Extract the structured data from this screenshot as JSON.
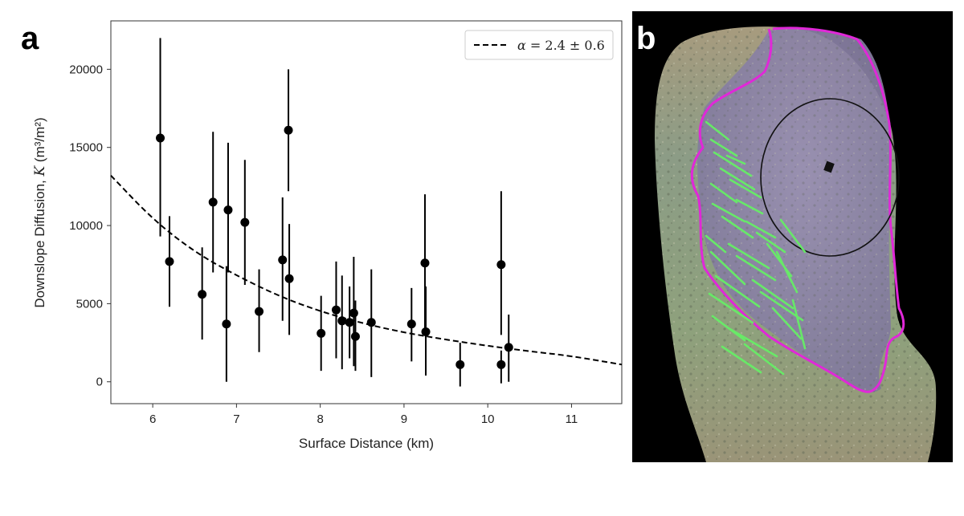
{
  "panels": {
    "a_label": "a",
    "b_label": "b"
  },
  "chart_data": {
    "type": "scatter",
    "title": "",
    "xlabel": "Surface Distance (km)",
    "ylabel": "Downslope Diffusion, K (m³/m²)",
    "ylabel_parts": {
      "prefix": "Downslope Diffusion, ",
      "var": "K",
      "unit": " (m³/m²)"
    },
    "xlim": [
      5.5,
      11.6
    ],
    "ylim": [
      -1400,
      23100
    ],
    "xticks": [
      6,
      7,
      8,
      9,
      10,
      11
    ],
    "yticks": [
      0,
      5000,
      10000,
      15000,
      20000
    ],
    "grid": false,
    "legend_position": "top-right",
    "series": [
      {
        "kind": "errorbar",
        "color": "#000000",
        "points": [
          {
            "x": 6.09,
            "y": 15600,
            "lo": 9300,
            "hi": 22000
          },
          {
            "x": 6.2,
            "y": 7700,
            "lo": 4800,
            "hi": 10600
          },
          {
            "x": 6.59,
            "y": 5600,
            "lo": 2700,
            "hi": 8600
          },
          {
            "x": 6.72,
            "y": 11500,
            "lo": 7000,
            "hi": 16000
          },
          {
            "x": 6.88,
            "y": 3700,
            "lo": 0,
            "hi": 7400
          },
          {
            "x": 6.9,
            "y": 11000,
            "lo": 7000,
            "hi": 15300
          },
          {
            "x": 7.1,
            "y": 10200,
            "lo": 6200,
            "hi": 14200
          },
          {
            "x": 7.27,
            "y": 4500,
            "lo": 1900,
            "hi": 7200
          },
          {
            "x": 7.55,
            "y": 7800,
            "lo": 3900,
            "hi": 11800
          },
          {
            "x": 7.62,
            "y": 16100,
            "lo": 12200,
            "hi": 20000
          },
          {
            "x": 7.63,
            "y": 6600,
            "lo": 3000,
            "hi": 10100
          },
          {
            "x": 8.01,
            "y": 3100,
            "lo": 700,
            "hi": 5500
          },
          {
            "x": 8.19,
            "y": 4600,
            "lo": 1500,
            "hi": 7700
          },
          {
            "x": 8.26,
            "y": 3900,
            "lo": 800,
            "hi": 6800
          },
          {
            "x": 8.35,
            "y": 3800,
            "lo": 1500,
            "hi": 6100
          },
          {
            "x": 8.4,
            "y": 4400,
            "lo": 1000,
            "hi": 8000
          },
          {
            "x": 8.42,
            "y": 2900,
            "lo": 700,
            "hi": 5200
          },
          {
            "x": 8.61,
            "y": 3800,
            "lo": 300,
            "hi": 7200
          },
          {
            "x": 9.09,
            "y": 3700,
            "lo": 1300,
            "hi": 6000
          },
          {
            "x": 9.25,
            "y": 7600,
            "lo": 3300,
            "hi": 12000
          },
          {
            "x": 9.26,
            "y": 3200,
            "lo": 400,
            "hi": 6100
          },
          {
            "x": 9.67,
            "y": 1100,
            "lo": -300,
            "hi": 2500
          },
          {
            "x": 10.16,
            "y": 7500,
            "lo": 3000,
            "hi": 12200
          },
          {
            "x": 10.16,
            "y": 1100,
            "lo": -100,
            "hi": 2000
          },
          {
            "x": 10.25,
            "y": 2200,
            "lo": 0,
            "hi": 4300
          }
        ]
      },
      {
        "kind": "fit",
        "name": "α = 2.4 ± 0.6",
        "style": "dashed",
        "color": "#000000",
        "x": [
          5.5,
          6.0,
          6.5,
          7.0,
          7.5,
          8.0,
          8.5,
          9.0,
          9.5,
          10.0,
          10.5,
          11.0,
          11.6
        ],
        "y": [
          13200,
          10400,
          8300,
          6800,
          5500,
          4500,
          3750,
          3150,
          2700,
          2300,
          1950,
          1650,
          1100
        ]
      }
    ],
    "legend_entries": [
      {
        "prefix": "",
        "var": "α",
        "value": " = 2.4 ± 0.6",
        "style": "dashed"
      }
    ]
  },
  "image_panel": {
    "description_icon": "asteroid-surface-map",
    "colors": {
      "background": "#000000",
      "boundary": "#e028d8",
      "lineaments": "#66ee66",
      "crater_outline": "#111111",
      "purple_region": "#8a7fa6",
      "surface": "#8f9a7a"
    }
  }
}
